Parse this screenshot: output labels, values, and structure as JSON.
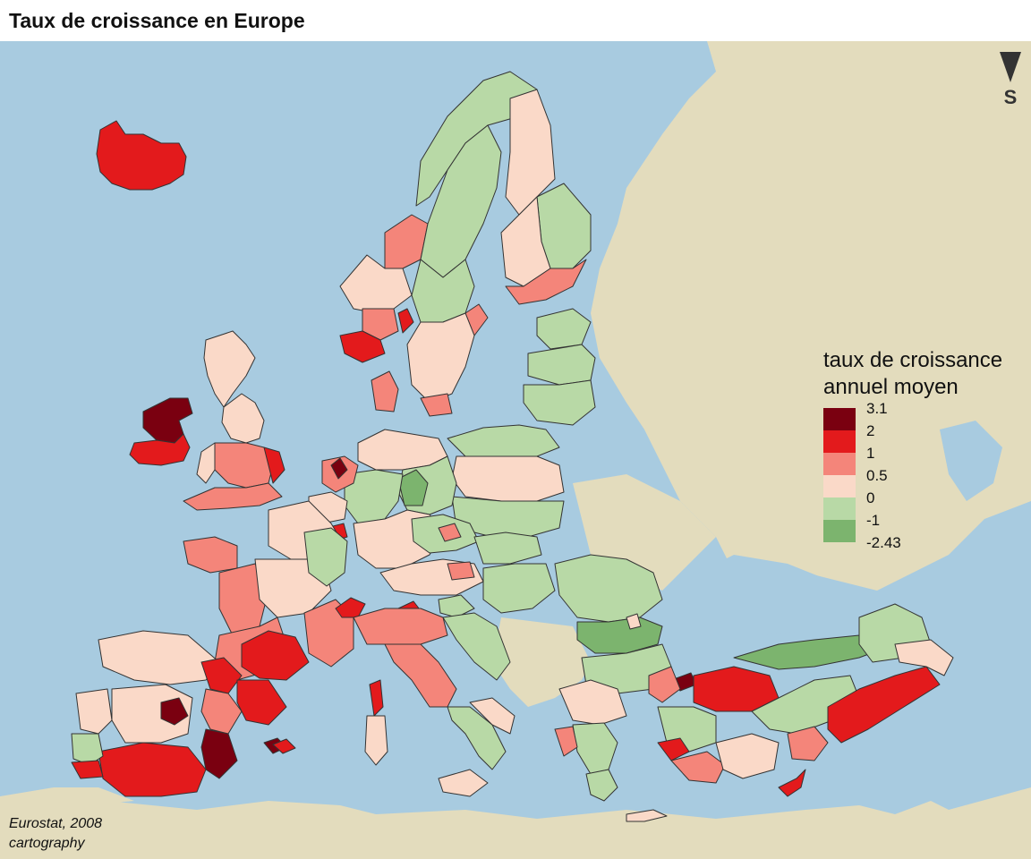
{
  "title": "Taux de croissance en Europe",
  "legend": {
    "title_line1": "taux de croissance",
    "title_line2": "annuel moyen",
    "breaks": [
      "3.1",
      "2",
      "1",
      "0.5",
      "0",
      "-1",
      "-2.43"
    ],
    "classes": [
      {
        "range": "2 – 3.1",
        "color": "#7a0010"
      },
      {
        "range": "1 – 2",
        "color": "#e31a1c"
      },
      {
        "range": "0.5 – 1",
        "color": "#f4857a"
      },
      {
        "range": "0 – 0.5",
        "color": "#fad9c8"
      },
      {
        "range": "-1 – 0",
        "color": "#b8d9a6"
      },
      {
        "range": "-2.43 – -1",
        "color": "#7cb46e"
      }
    ]
  },
  "compass": {
    "label": "S",
    "icon": "south-arrow-icon"
  },
  "source": {
    "line1": "Eurostat, 2008",
    "line2": "cartography"
  },
  "colors": {
    "sea": "#a8cbe0",
    "land_outside": "#e3dcbd",
    "border": "#333333"
  }
}
